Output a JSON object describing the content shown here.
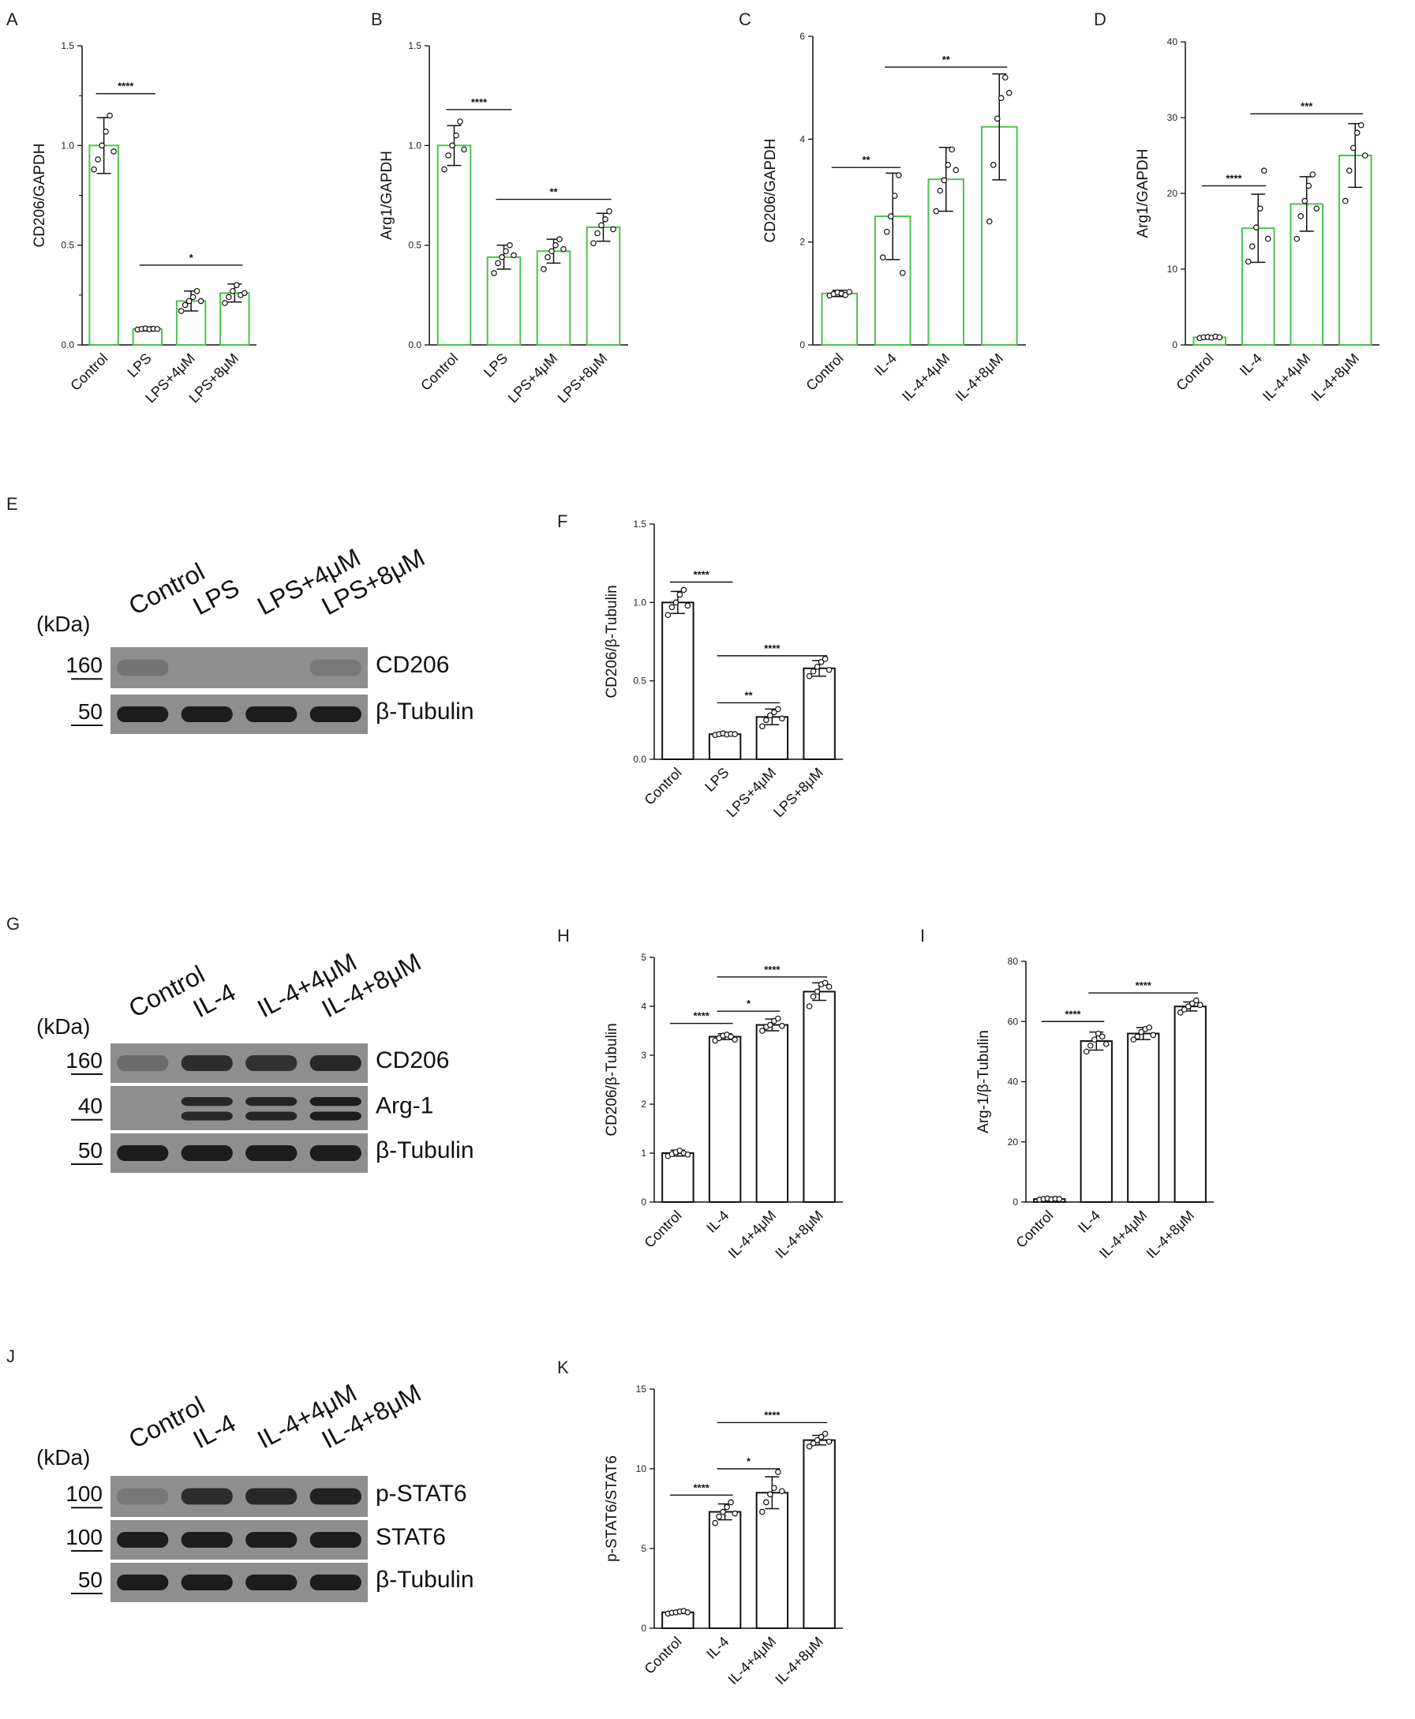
{
  "colors": {
    "green": "#4cc24c",
    "black": "#111111",
    "blot_bg": "#8e8e8e",
    "band": "#1c1c1c"
  },
  "chart_data": [
    {
      "panel": "A",
      "type": "bar",
      "color": "green",
      "categories": [
        "Control",
        "LPS",
        "LPS+4μM",
        "LPS+8μM"
      ],
      "values": [
        1.0,
        0.08,
        0.22,
        0.26
      ],
      "errors": [
        0.14,
        0.01,
        0.05,
        0.045
      ],
      "points": [
        [
          0.88,
          0.93,
          1.0,
          1.07,
          1.15,
          0.97
        ],
        [
          0.077,
          0.08,
          0.083,
          0.079,
          0.081,
          0.08
        ],
        [
          0.17,
          0.2,
          0.22,
          0.24,
          0.27,
          0.22
        ],
        [
          0.21,
          0.24,
          0.27,
          0.3,
          0.25,
          0.26
        ]
      ],
      "ylabel": "CD206/GAPDH",
      "ylim": [
        0,
        1.5
      ],
      "ticks": [
        "0.0",
        "0.5",
        "1.0",
        "1.5"
      ],
      "tick_values": [
        0,
        0.5,
        1.0,
        1.5
      ],
      "minor": [
        0.25,
        0.75,
        1.25
      ],
      "minor_labels": [
        "",
        "",
        ""
      ],
      "sig": [
        {
          "from": 0,
          "to": 1,
          "label": "****",
          "y": 1.26
        },
        {
          "from": 1,
          "to": 3,
          "label": "*",
          "y": 0.4
        }
      ]
    },
    {
      "panel": "B",
      "type": "bar",
      "color": "green",
      "categories": [
        "Control",
        "LPS",
        "LPS+4μM",
        "LPS+8μM"
      ],
      "values": [
        1.0,
        0.44,
        0.47,
        0.59
      ],
      "errors": [
        0.1,
        0.06,
        0.06,
        0.07
      ],
      "points": [
        [
          0.88,
          0.95,
          1.0,
          1.05,
          1.12,
          0.98
        ],
        [
          0.36,
          0.41,
          0.44,
          0.47,
          0.5,
          0.45
        ],
        [
          0.38,
          0.44,
          0.47,
          0.5,
          0.53,
          0.48
        ],
        [
          0.51,
          0.56,
          0.6,
          0.63,
          0.67,
          0.58
        ]
      ],
      "ylabel": "Arg1/GAPDH",
      "ylim": [
        0,
        1.5
      ],
      "ticks": [
        "0.0",
        "0.5",
        "1.0",
        "1.5"
      ],
      "tick_values": [
        0,
        0.5,
        1.0,
        1.5
      ],
      "sig": [
        {
          "from": 0,
          "to": 1,
          "label": "****",
          "y": 1.18
        },
        {
          "from": 1,
          "to": 3,
          "label": "**",
          "y": 0.73
        }
      ]
    },
    {
      "panel": "C",
      "type": "bar",
      "color": "green",
      "categories": [
        "Control",
        "IL-4",
        "IL-4+4μM",
        "IL-4+8μM"
      ],
      "values": [
        1.0,
        2.5,
        3.22,
        4.24
      ],
      "errors": [
        0.06,
        0.84,
        0.62,
        1.03
      ],
      "points": [
        [
          0.96,
          0.99,
          1.02,
          1.0,
          0.97,
          1.03
        ],
        [
          1.7,
          2.2,
          2.5,
          2.9,
          3.3,
          1.4
        ],
        [
          2.6,
          3.0,
          3.2,
          3.5,
          3.8,
          3.4
        ],
        [
          2.4,
          3.5,
          4.4,
          4.8,
          5.2,
          4.9
        ]
      ],
      "ylabel": "CD206/GAPDH",
      "ylim": [
        0,
        6
      ],
      "ticks": [
        "0",
        "2",
        "4",
        "6"
      ],
      "tick_values": [
        0,
        2,
        4,
        6
      ],
      "sig": [
        {
          "from": 0,
          "to": 1,
          "label": "**",
          "y": 3.45
        },
        {
          "from": 1,
          "to": 3,
          "label": "**",
          "y": 5.4
        }
      ]
    },
    {
      "panel": "D",
      "type": "bar",
      "color": "green",
      "categories": [
        "Control",
        "IL-4",
        "IL-4+4μM",
        "IL-4+8μM"
      ],
      "values": [
        1.0,
        15.4,
        18.6,
        25.0
      ],
      "errors": [
        0.1,
        4.5,
        3.6,
        4.2
      ],
      "points": [
        [
          0.9,
          1.0,
          1.05,
          0.95,
          1.1,
          1.0
        ],
        [
          11.0,
          13.0,
          15.5,
          18.0,
          23.0,
          14.0
        ],
        [
          14.0,
          17.0,
          19.0,
          21.0,
          22.5,
          18.0
        ],
        [
          19.0,
          23.0,
          26.0,
          28.0,
          29.0,
          25.0
        ]
      ],
      "ylabel": "Arg1/GAPDH",
      "ylim": [
        0,
        40
      ],
      "ticks": [
        "0",
        "10",
        "20",
        "30",
        "40"
      ],
      "tick_values": [
        0,
        10,
        20,
        30,
        40
      ],
      "sig": [
        {
          "from": 0,
          "to": 1,
          "label": "****",
          "y": 21.0
        },
        {
          "from": 1,
          "to": 3,
          "label": "***",
          "y": 30.5
        }
      ]
    },
    {
      "panel": "F",
      "type": "bar",
      "color": "black",
      "categories": [
        "Control",
        "LPS",
        "LPS+4μM",
        "LPS+8μM"
      ],
      "values": [
        1.0,
        0.16,
        0.27,
        0.58
      ],
      "errors": [
        0.07,
        0.01,
        0.05,
        0.05
      ],
      "points": [
        [
          0.92,
          0.97,
          1.0,
          1.05,
          1.08,
          0.98
        ],
        [
          0.155,
          0.16,
          0.165,
          0.158,
          0.162,
          0.16
        ],
        [
          0.21,
          0.25,
          0.28,
          0.3,
          0.32,
          0.26
        ],
        [
          0.53,
          0.56,
          0.59,
          0.62,
          0.64,
          0.57
        ]
      ],
      "ylabel": "CD206/β-Tubulin",
      "ylim": [
        0,
        1.5
      ],
      "ticks": [
        "0.0",
        "0.5",
        "1.0",
        "1.5"
      ],
      "tick_values": [
        0,
        0.5,
        1.0,
        1.5
      ],
      "sig": [
        {
          "from": 0,
          "to": 1,
          "label": "****",
          "y": 1.13
        },
        {
          "from": 1,
          "to": 2,
          "label": "**",
          "y": 0.36
        },
        {
          "from": 1,
          "to": 3,
          "label": "****",
          "y": 0.66
        }
      ]
    },
    {
      "panel": "H",
      "type": "bar",
      "color": "black",
      "categories": [
        "Control",
        "IL-4",
        "IL-4+4μM",
        "IL-4+8μM"
      ],
      "values": [
        1.0,
        3.38,
        3.62,
        4.3
      ],
      "errors": [
        0.06,
        0.06,
        0.12,
        0.18
      ],
      "points": [
        [
          0.94,
          0.98,
          1.02,
          1.05,
          1.0,
          0.97
        ],
        [
          3.3,
          3.35,
          3.4,
          3.42,
          3.38,
          3.32
        ],
        [
          3.5,
          3.58,
          3.62,
          3.7,
          3.75,
          3.6
        ],
        [
          4.0,
          4.2,
          4.3,
          4.45,
          4.48,
          4.4
        ]
      ],
      "ylabel": "CD206/β-Tubulin",
      "ylim": [
        0,
        5
      ],
      "ticks": [
        "0",
        "1",
        "2",
        "3",
        "4",
        "5"
      ],
      "tick_values": [
        0,
        1,
        2,
        3,
        4,
        5
      ],
      "sig": [
        {
          "from": 0,
          "to": 1,
          "label": "****",
          "y": 3.65
        },
        {
          "from": 1,
          "to": 2,
          "label": "*",
          "y": 3.9
        },
        {
          "from": 1,
          "to": 3,
          "label": "****",
          "y": 4.6
        }
      ]
    },
    {
      "panel": "I",
      "type": "bar",
      "color": "black",
      "categories": [
        "Control",
        "IL-4",
        "IL-4+4μM",
        "IL-4+8μM"
      ],
      "values": [
        1.0,
        53.5,
        56.0,
        65.0
      ],
      "errors": [
        0.3,
        3.0,
        2.0,
        1.5
      ],
      "points": [
        [
          0.8,
          1.0,
          1.2,
          0.9,
          1.1,
          1.0
        ],
        [
          50.0,
          52.0,
          54.0,
          56.0,
          55.0,
          52.5
        ],
        [
          54.0,
          55.0,
          56.5,
          57.5,
          58.0,
          55.5
        ],
        [
          63.0,
          64.0,
          65.0,
          66.0,
          67.0,
          65.5
        ]
      ],
      "ylabel": "Arg-1/β-Tubulin",
      "ylim": [
        0,
        80
      ],
      "ticks": [
        "0",
        "20",
        "40",
        "60",
        "80"
      ],
      "tick_values": [
        0,
        20,
        40,
        60,
        80
      ],
      "sig": [
        {
          "from": 0,
          "to": 1,
          "label": "****",
          "y": 60.0
        },
        {
          "from": 1,
          "to": 3,
          "label": "****",
          "y": 69.5
        }
      ]
    },
    {
      "panel": "K",
      "type": "bar",
      "color": "black",
      "categories": [
        "Control",
        "IL-4",
        "IL-4+4μM",
        "IL-4+8μM"
      ],
      "values": [
        1.0,
        7.3,
        8.5,
        11.8
      ],
      "errors": [
        0.08,
        0.5,
        1.0,
        0.3
      ],
      "points": [
        [
          0.92,
          0.97,
          1.0,
          1.05,
          1.08,
          1.0
        ],
        [
          6.6,
          7.0,
          7.3,
          7.6,
          7.9,
          7.2
        ],
        [
          7.3,
          7.9,
          8.4,
          8.8,
          9.8,
          8.6
        ],
        [
          11.4,
          11.6,
          11.8,
          12.0,
          12.2,
          11.7
        ]
      ],
      "ylabel": "p-STAT6/STAT6",
      "ylim": [
        0,
        15
      ],
      "ticks": [
        "0",
        "5",
        "10",
        "15"
      ],
      "tick_values": [
        0,
        5,
        10,
        15
      ],
      "sig": [
        {
          "from": 0,
          "to": 1,
          "label": "****",
          "y": 8.35
        },
        {
          "from": 1,
          "to": 2,
          "label": "*",
          "y": 10.0
        },
        {
          "from": 1,
          "to": 3,
          "label": "****",
          "y": 12.9
        }
      ]
    }
  ],
  "blots": [
    {
      "panel": "E",
      "kda_label": "(kDa)",
      "lanes": [
        "Control",
        "LPS",
        "LPS+4μM",
        "LPS+8μM"
      ],
      "rows": [
        {
          "mw": "160",
          "protein": "CD206",
          "intensity": [
            0.22,
            0.0,
            0.0,
            0.18
          ]
        },
        {
          "mw": "50",
          "protein": "β-Tubulin",
          "intensity": [
            1.0,
            1.0,
            1.0,
            1.0
          ]
        }
      ]
    },
    {
      "panel": "G",
      "kda_label": "(kDa)",
      "lanes": [
        "Control",
        "IL-4",
        "IL-4+4μM",
        "IL-4+8μM"
      ],
      "rows": [
        {
          "mw": "160",
          "protein": "CD206",
          "intensity": [
            0.3,
            0.85,
            0.82,
            0.9
          ]
        },
        {
          "mw": "40",
          "protein": "Arg-1",
          "intensity": [
            0.0,
            0.9,
            0.92,
            1.0
          ],
          "double": true
        },
        {
          "mw": "50",
          "protein": "β-Tubulin",
          "intensity": [
            1.0,
            1.0,
            1.0,
            1.0
          ]
        }
      ]
    },
    {
      "panel": "J",
      "kda_label": "(kDa)",
      "lanes": [
        "Control",
        "IL-4",
        "IL-4+4μM",
        "IL-4+8μM"
      ],
      "rows": [
        {
          "mw": "100",
          "protein": "p-STAT6",
          "intensity": [
            0.2,
            0.85,
            0.9,
            0.95
          ]
        },
        {
          "mw": "100",
          "protein": "STAT6",
          "intensity": [
            1.0,
            1.0,
            1.0,
            1.0
          ]
        },
        {
          "mw": "50",
          "protein": "β-Tubulin",
          "intensity": [
            1.0,
            1.0,
            1.0,
            1.0
          ]
        }
      ]
    }
  ]
}
